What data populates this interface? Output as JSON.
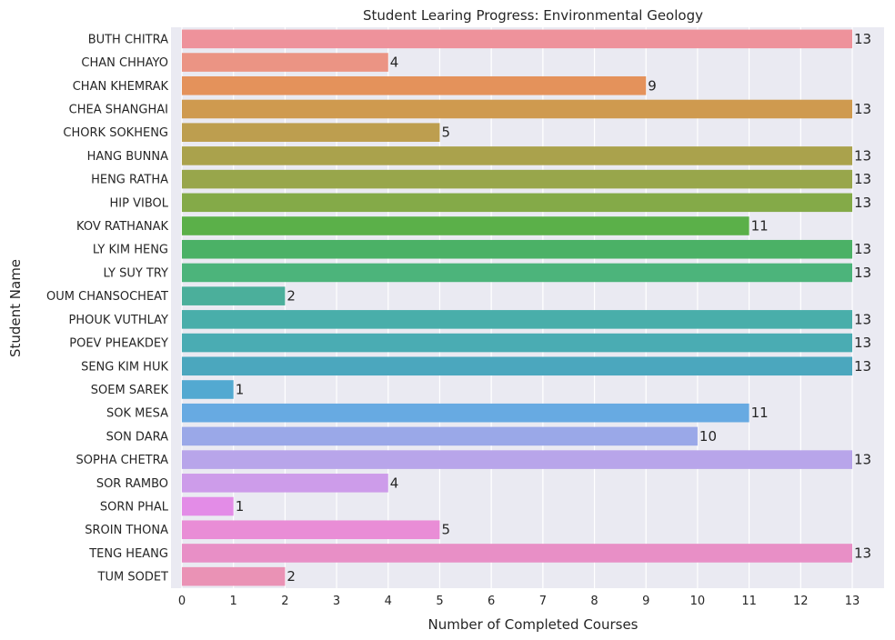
{
  "chart_data": {
    "type": "bar",
    "orientation": "horizontal",
    "title": "Student Learing Progress: Environmental Geology",
    "xlabel": "Number of Completed Courses",
    "ylabel": "Student Name",
    "xlim": [
      0,
      13.6
    ],
    "xticks": [
      0,
      1,
      2,
      3,
      4,
      5,
      6,
      7,
      8,
      9,
      10,
      11,
      12,
      13
    ],
    "grid": true,
    "background": "#eaeaf2",
    "categories": [
      "BUTH CHITRA",
      "CHAN CHHAYO",
      "CHAN KHEMRAK",
      "CHEA SHANGHAI",
      "CHORK SOKHENG",
      "HANG BUNNA",
      "HENG RATHA",
      "HIP VIBOL",
      "KOV RATHANAK",
      "LY KIM HENG",
      "LY SUY TRY",
      "OUM CHANSOCHEAT",
      "PHOUK VUTHLAY",
      "POEV PHEAKDEY",
      "SENG KIM HUK",
      "SOEM SAREK",
      "SOK MESA",
      "SON DARA",
      "SOPHA CHETRA",
      "SOR RAMBO",
      "SORN PHAL",
      "SROIN THONA",
      "TENG HEANG",
      "TUM SODET"
    ],
    "values": [
      13,
      4,
      9,
      13,
      5,
      13,
      13,
      13,
      11,
      13,
      13,
      2,
      13,
      13,
      13,
      1,
      11,
      10,
      13,
      4,
      1,
      5,
      13,
      2
    ],
    "colors": [
      "#ee929b",
      "#eb9484",
      "#e4925b",
      "#cf9a4f",
      "#bd9e4f",
      "#aaa24c",
      "#98a64b",
      "#84aa48",
      "#5bb049",
      "#4bb166",
      "#4cb47b",
      "#4baf9b",
      "#49aeaa",
      "#4aacb3",
      "#4ba7be",
      "#53a9d1",
      "#67aae2",
      "#9aa8e8",
      "#b8a5ea",
      "#cd9cea",
      "#e38ce7",
      "#e98dd6",
      "#e88fc6",
      "#ea92b5"
    ]
  }
}
